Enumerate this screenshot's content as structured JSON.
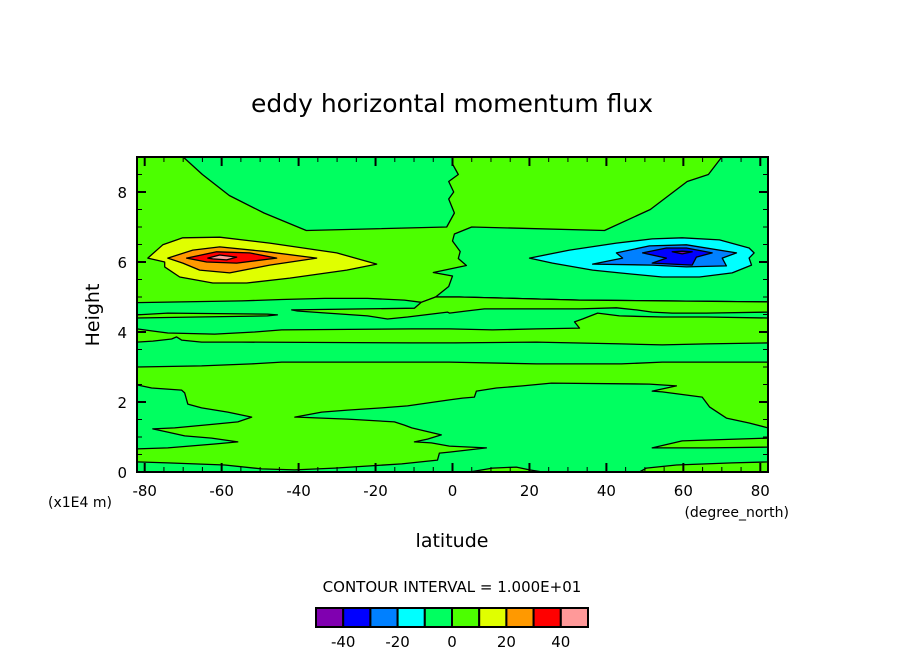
{
  "chart_data": {
    "type": "contour",
    "title": "eddy horizontal momentum flux",
    "xlabel": "latitude",
    "xunits": "(degree_north)",
    "ylabel": "Height",
    "yunits": "(x1E4 m)",
    "xlim": [
      -82,
      82
    ],
    "ylim": [
      0,
      9
    ],
    "xticks": [
      -80,
      -60,
      -40,
      -20,
      0,
      20,
      40,
      60,
      80
    ],
    "xtick_labels": [
      "-80",
      "-60",
      "-40",
      "-20",
      "0",
      "20",
      "40",
      "60",
      "80"
    ],
    "yticks": [
      0,
      2,
      4,
      6,
      8
    ],
    "ytick_labels": [
      "0",
      "2",
      "4",
      "6",
      "8"
    ],
    "contour_interval_label": "CONTOUR INTERVAL = 1.000E+01",
    "levels": [
      -50,
      -40,
      -30,
      -20,
      -10,
      0,
      10,
      20,
      30,
      40,
      50
    ],
    "colors": [
      "#8000b0",
      "#0000ff",
      "#0080ff",
      "#00ffff",
      "#00ff60",
      "#4cff00",
      "#e0ff00",
      "#ff9900",
      "#ff0000",
      "#ff9999"
    ],
    "colorbar_ticks": [
      -40,
      -20,
      0,
      20,
      40
    ],
    "colorbar_labels": [
      "-40",
      "-20",
      "0",
      "20",
      "40"
    ],
    "background_level_index": 5,
    "regions": [
      {
        "name": "upper-left-negative-region",
        "level_index": 4,
        "polygon": [
          [
            -70,
            9
          ],
          [
            -65,
            8.5
          ],
          [
            -58,
            7.9
          ],
          [
            -49,
            7.4
          ],
          [
            -38,
            6.9
          ],
          [
            -1.5,
            7.0
          ],
          [
            0.5,
            7.4
          ],
          [
            -1,
            7.8
          ],
          [
            0.3,
            8.0
          ],
          [
            -1,
            8.3
          ],
          [
            1.5,
            8.5
          ],
          [
            0,
            8.8
          ],
          [
            0,
            9
          ]
        ]
      },
      {
        "name": "right-negative-region",
        "level_index": 4,
        "polygon": [
          [
            70,
            9
          ],
          [
            66.5,
            8.5
          ],
          [
            61,
            8.3
          ],
          [
            51.4,
            7.5
          ],
          [
            39.5,
            6.9
          ],
          [
            5,
            7.0
          ],
          [
            0.5,
            6.8
          ],
          [
            0,
            6.6
          ],
          [
            2,
            6.3
          ],
          [
            1.5,
            6.1
          ],
          [
            3.6,
            5.9
          ],
          [
            -5,
            5.7
          ],
          [
            0,
            5.6
          ],
          [
            -1,
            5.3
          ],
          [
            -4.4,
            5.0
          ],
          [
            1.8,
            5.0
          ],
          [
            33,
            4.91
          ],
          [
            82,
            4.86
          ],
          [
            82,
            9
          ]
        ]
      },
      {
        "name": "mid-negative-band-1",
        "level_index": 4,
        "polygon": [
          [
            -82,
            4.84
          ],
          [
            -54.8,
            4.89
          ],
          [
            -44.4,
            4.93
          ],
          [
            -33.2,
            4.96
          ],
          [
            -22.1,
            4.96
          ],
          [
            -12.5,
            4.91
          ],
          [
            -8.1,
            4.85
          ],
          [
            -4.4,
            5.0
          ],
          [
            1.8,
            5.0
          ],
          [
            33,
            4.91
          ],
          [
            82,
            4.86
          ],
          [
            82,
            4.4
          ],
          [
            66,
            4.43
          ],
          [
            54.5,
            4.43
          ],
          [
            43.4,
            4.46
          ],
          [
            37.7,
            4.54
          ],
          [
            33.8,
            4.37
          ],
          [
            31.7,
            4.29
          ],
          [
            33,
            4.11
          ],
          [
            21.8,
            4.09
          ],
          [
            10.4,
            4.06
          ],
          [
            -0.8,
            4.09
          ],
          [
            -10.6,
            4.09
          ],
          [
            -44.4,
            4.06
          ],
          [
            -51.4,
            4.0
          ],
          [
            -61.8,
            3.94
          ],
          [
            -74,
            3.97
          ],
          [
            -78.2,
            4.03
          ],
          [
            -82,
            4.09
          ]
        ]
      },
      {
        "name": "mid-positive-wedge",
        "level_index": 5,
        "polygon": [
          [
            -82,
            4.49
          ],
          [
            -74,
            4.54
          ],
          [
            -48.1,
            4.51
          ],
          [
            -45.5,
            4.49
          ],
          [
            -48.1,
            4.46
          ],
          [
            -66.2,
            4.43
          ],
          [
            -82,
            4.4
          ]
        ]
      },
      {
        "name": "mid-positive-tongue",
        "level_index": 5,
        "polygon": [
          [
            -41.8,
            4.63
          ],
          [
            -9.9,
            4.68
          ],
          [
            -8.1,
            4.85
          ],
          [
            -4.4,
            5.0
          ],
          [
            1.8,
            5.0
          ],
          [
            33,
            4.91
          ],
          [
            82,
            4.86
          ],
          [
            82,
            4.57
          ],
          [
            66,
            4.54
          ],
          [
            57.1,
            4.54
          ],
          [
            51.9,
            4.57
          ],
          [
            47.8,
            4.63
          ],
          [
            42.6,
            4.69
          ],
          [
            33,
            4.66
          ],
          [
            8.3,
            4.66
          ],
          [
            3.6,
            4.6
          ],
          [
            -0.8,
            4.54
          ],
          [
            -1.3,
            4.57
          ],
          [
            -11.7,
            4.43
          ],
          [
            -16.9,
            4.37
          ],
          [
            -22.1,
            4.46
          ],
          [
            -32.5,
            4.54
          ],
          [
            -40.3,
            4.6
          ]
        ]
      },
      {
        "name": "mid-negative-band-2",
        "level_index": 4,
        "polygon": [
          [
            -82,
            3.71
          ],
          [
            -77.9,
            3.74
          ],
          [
            -73,
            3.8
          ],
          [
            -71.7,
            3.86
          ],
          [
            -70.4,
            3.77
          ],
          [
            -65.2,
            3.71
          ],
          [
            -54.8,
            3.71
          ],
          [
            -10.6,
            3.69
          ],
          [
            0.5,
            3.69
          ],
          [
            21.8,
            3.71
          ],
          [
            43.9,
            3.66
          ],
          [
            54.5,
            3.63
          ],
          [
            66,
            3.66
          ],
          [
            82,
            3.69
          ],
          [
            82,
            3.14
          ],
          [
            54.5,
            3.14
          ],
          [
            43.9,
            3.09
          ],
          [
            21.8,
            3.09
          ],
          [
            -0.8,
            3.14
          ],
          [
            -44.4,
            3.14
          ],
          [
            -52.2,
            3.09
          ],
          [
            -65.2,
            3.03
          ],
          [
            -82,
            3.0
          ]
        ]
      },
      {
        "name": "lower-left-negative-region",
        "level_index": 4,
        "polygon": [
          [
            -82,
            2.49
          ],
          [
            -78.2,
            2.4
          ],
          [
            -70.4,
            2.34
          ],
          [
            -69.6,
            2.26
          ],
          [
            -68.8,
            1.94
          ],
          [
            -65.2,
            1.83
          ],
          [
            -58.4,
            1.71
          ],
          [
            -52.2,
            1.57
          ],
          [
            -55.8,
            1.43
          ],
          [
            -61.8,
            1.37
          ],
          [
            -72.2,
            1.26
          ],
          [
            -77.9,
            1.23
          ],
          [
            -74,
            1.14
          ],
          [
            -69.6,
            1.03
          ],
          [
            -62.6,
            0.97
          ],
          [
            -55.8,
            0.86
          ],
          [
            -61.8,
            0.8
          ],
          [
            -74,
            0.69
          ],
          [
            -82,
            0.66
          ]
        ]
      },
      {
        "name": "lower-negative-region",
        "level_index": 4,
        "polygon": [
          [
            -41,
            1.57
          ],
          [
            -34,
            1.71
          ],
          [
            -27.3,
            1.77
          ],
          [
            -18.4,
            1.83
          ],
          [
            -11.7,
            1.89
          ],
          [
            -0.8,
            2.06
          ],
          [
            2.6,
            2.11
          ],
          [
            5.7,
            2.14
          ],
          [
            6.2,
            2.31
          ],
          [
            11.4,
            2.4
          ],
          [
            18.2,
            2.46
          ],
          [
            25.7,
            2.54
          ],
          [
            51.2,
            2.51
          ],
          [
            58.2,
            2.46
          ],
          [
            51.9,
            2.31
          ],
          [
            54.5,
            2.29
          ],
          [
            64.9,
            2.14
          ],
          [
            66.8,
            1.86
          ],
          [
            71.2,
            1.54
          ],
          [
            77.1,
            1.4
          ],
          [
            82,
            1.26
          ],
          [
            82,
            0.29
          ],
          [
            72.7,
            0.26
          ],
          [
            58.2,
            0.2
          ],
          [
            50.4,
            0.11
          ],
          [
            48.6,
            0
          ],
          [
            -82,
            0
          ],
          [
            -82,
            0.29
          ],
          [
            -74,
            0.26
          ],
          [
            -59.2,
            0.2
          ],
          [
            -49.6,
            0.09
          ],
          [
            -41,
            0.06
          ],
          [
            -30.6,
            0.11
          ],
          [
            -13.2,
            0.23
          ],
          [
            -3.9,
            0.34
          ],
          [
            -3.4,
            0.54
          ],
          [
            -0.8,
            0.57
          ],
          [
            8.8,
            0.69
          ],
          [
            -0.8,
            0.74
          ],
          [
            -5.5,
            0.83
          ],
          [
            -9.9,
            0.86
          ],
          [
            -6.5,
            0.94
          ],
          [
            -2.9,
            1.06
          ],
          [
            -10.6,
            1.26
          ],
          [
            -12.5,
            1.34
          ],
          [
            -15.1,
            1.43
          ],
          [
            -27.3,
            1.51
          ],
          [
            -34,
            1.54
          ],
          [
            -40.3,
            1.57
          ]
        ]
      },
      {
        "name": "lower-right-positive-wedge",
        "level_index": 5,
        "polygon": [
          [
            82,
            0.97
          ],
          [
            59.7,
            0.89
          ],
          [
            51.9,
            0.69
          ],
          [
            66,
            0.69
          ],
          [
            82,
            0.71
          ]
        ]
      },
      {
        "name": "bottom-positive-bump",
        "level_index": 5,
        "polygon": [
          [
            4.4,
            0
          ],
          [
            10.4,
            0.11
          ],
          [
            16.6,
            0.14
          ],
          [
            20,
            0.06
          ],
          [
            23.4,
            0
          ]
        ]
      },
      {
        "name": "positive-max-10",
        "level_index": 6,
        "polygon": [
          [
            -79.2,
            6.11
          ],
          [
            -75.3,
            6.49
          ],
          [
            -70.1,
            6.69
          ],
          [
            -60.5,
            6.71
          ],
          [
            -47.5,
            6.54
          ],
          [
            -30.1,
            6.26
          ],
          [
            -19.7,
            5.94
          ],
          [
            -27.5,
            5.77
          ],
          [
            -42.3,
            5.54
          ],
          [
            -53.5,
            5.4
          ],
          [
            -62.3,
            5.4
          ],
          [
            -70.9,
            5.57
          ],
          [
            -74.8,
            5.86
          ],
          [
            -74.8,
            6.0
          ]
        ]
      },
      {
        "name": "positive-max-20",
        "level_index": 7,
        "polygon": [
          [
            -74,
            6.11
          ],
          [
            -67.5,
            6.34
          ],
          [
            -60.5,
            6.43
          ],
          [
            -49.4,
            6.31
          ],
          [
            -35.3,
            6.11
          ],
          [
            -47.5,
            5.91
          ],
          [
            -57.9,
            5.69
          ],
          [
            -65.7,
            5.77
          ],
          [
            -70.1,
            5.97
          ]
        ]
      },
      {
        "name": "positive-max-30",
        "level_index": 8,
        "polygon": [
          [
            -69.1,
            6.11
          ],
          [
            -61.3,
            6.29
          ],
          [
            -52.7,
            6.26
          ],
          [
            -45.7,
            6.11
          ],
          [
            -56.1,
            5.97
          ],
          [
            -63.9,
            6.0
          ]
        ]
      },
      {
        "name": "positive-max-40",
        "level_index": 9,
        "polygon": [
          [
            -63.6,
            6.11
          ],
          [
            -60.5,
            6.2
          ],
          [
            -56.1,
            6.14
          ],
          [
            -58.7,
            6.06
          ],
          [
            -62.3,
            6.09
          ]
        ]
      },
      {
        "name": "negative-min-10",
        "level_index": 3,
        "polygon": [
          [
            20,
            6.11
          ],
          [
            30.4,
            6.34
          ],
          [
            42.6,
            6.54
          ],
          [
            51.9,
            6.66
          ],
          [
            59.7,
            6.69
          ],
          [
            69.4,
            6.63
          ],
          [
            77.1,
            6.4
          ],
          [
            78.4,
            6.26
          ],
          [
            77.1,
            6.11
          ],
          [
            77.7,
            5.91
          ],
          [
            72.7,
            5.69
          ],
          [
            64.2,
            5.57
          ],
          [
            54.5,
            5.57
          ],
          [
            43.4,
            5.69
          ],
          [
            36.4,
            5.77
          ],
          [
            26,
            5.97
          ]
        ]
      },
      {
        "name": "negative-min-20",
        "level_index": 2,
        "polygon": [
          [
            42.6,
            6.26
          ],
          [
            51.2,
            6.46
          ],
          [
            60.8,
            6.49
          ],
          [
            73.8,
            6.26
          ],
          [
            70.1,
            6.11
          ],
          [
            71.2,
            5.89
          ],
          [
            60.8,
            5.86
          ],
          [
            51.9,
            5.91
          ],
          [
            36.4,
            5.94
          ],
          [
            44.2,
            6.11
          ]
        ]
      },
      {
        "name": "negative-min-30",
        "level_index": 1,
        "polygon": [
          [
            49.4,
            6.26
          ],
          [
            55.6,
            6.4
          ],
          [
            60.8,
            6.4
          ],
          [
            67.5,
            6.26
          ],
          [
            63.4,
            6.14
          ],
          [
            62.3,
            5.91
          ],
          [
            51.9,
            5.97
          ],
          [
            55.6,
            6.11
          ]
        ]
      },
      {
        "name": "negative-min-40",
        "level_index": 0,
        "polygon": [
          [
            57.1,
            6.29
          ],
          [
            59.7,
            6.31
          ],
          [
            62.3,
            6.29
          ],
          [
            59.7,
            6.23
          ]
        ]
      }
    ]
  }
}
